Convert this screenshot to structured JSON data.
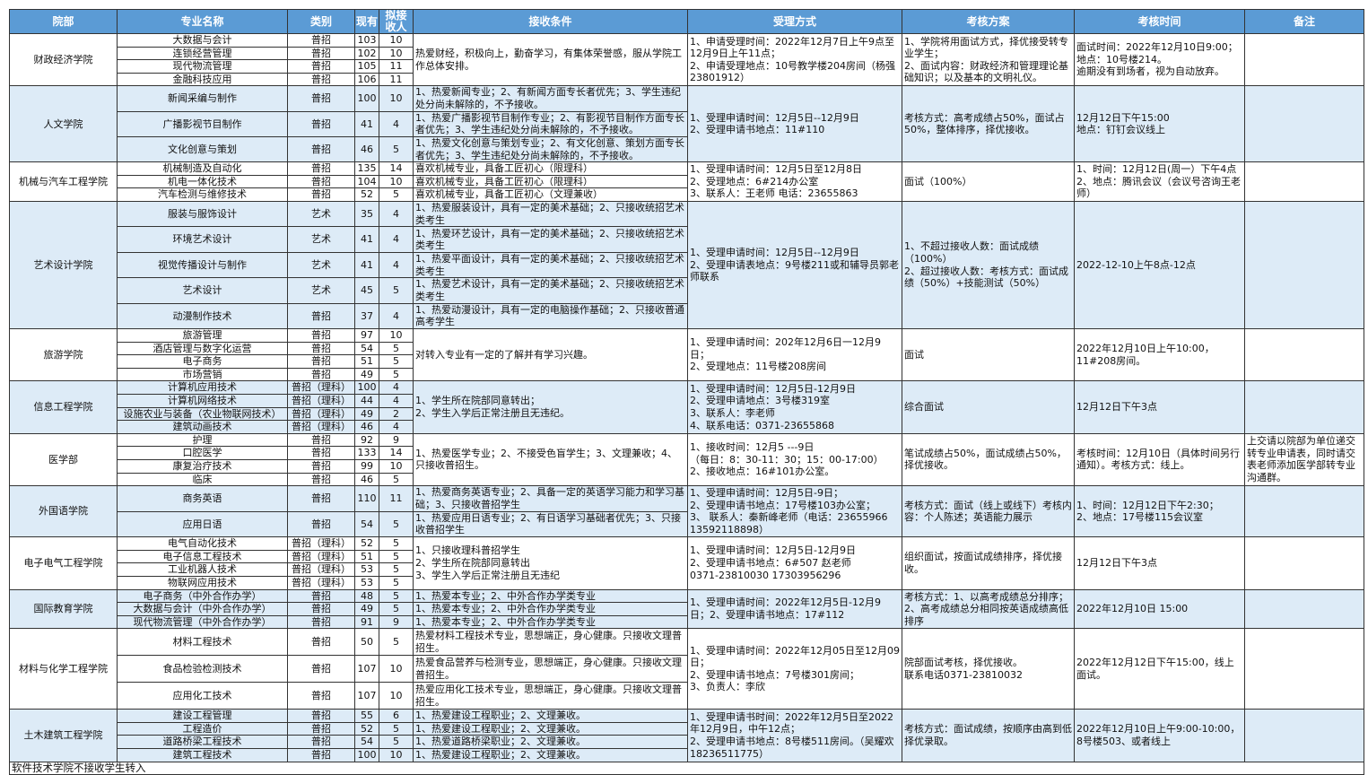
{
  "headers": [
    "院部",
    "专业名称",
    "类别",
    "现有",
    "拟接收人",
    "接收条件",
    "受理方式",
    "考核方案",
    "考核时间",
    "备注"
  ],
  "colors": {
    "header_bg": "#5b9bd5",
    "header_text": "#ffffff",
    "shade_bg": "#ddebf7"
  },
  "colleges": [
    {
      "name": "财政经济学院",
      "shade": false,
      "majors": [
        {
          "name": "大数据与会计",
          "type": "普招",
          "current": "103",
          "quota": "10"
        },
        {
          "name": "连锁经营管理",
          "type": "普招",
          "current": "102",
          "quota": "10"
        },
        {
          "name": "现代物流管理",
          "type": "普招",
          "current": "105",
          "quota": "11"
        },
        {
          "name": "金融科技应用",
          "type": "普招",
          "current": "106",
          "quota": "11"
        }
      ],
      "condition": "热爱财经，积极向上，勤奋学习，有集体荣誉感，服从学院工作总体安排。",
      "process": "1、申请受理时间：2022年12月7日上午9点至12月9日上午11点；\n2、申请受理地点：10号教学楼204房间（杨强23801912）",
      "assessment": "1、学院将用面试方式，择优接受转专业学生；\n2、面试内容：财政经济和管理理论基础知识；以及基本的文明礼仪。",
      "time": "面试时间：2022年12月10日9:00；\n地点：10号楼214。\n逾期没有到场者，视为自动放弃。",
      "note": ""
    },
    {
      "name": "人文学院",
      "shade": true,
      "majors": [
        {
          "name": "新闻采编与制作",
          "type": "普招",
          "current": "100",
          "quota": "10",
          "condition": "1、热爱新闻专业；2、有新闻方面专长者优先；3、学生违纪处分尚未解除的，不予接收。"
        },
        {
          "name": "广播影视节目制作",
          "type": "普招",
          "current": "41",
          "quota": "4",
          "condition": "1、热爱广播影视节目制作专业；2、有影视节目制作方面专长者优先；3、学生违纪处分尚未解除的，不予接收。"
        },
        {
          "name": "文化创意与策划",
          "type": "普招",
          "current": "46",
          "quota": "5",
          "condition": "1、热爱文化创意与策划专业；2、有文化创意、策划方面专长者优先；3、学生违纪处分尚未解除的，不予接收。"
        }
      ],
      "process": "1、受理申请时间：12月5日--12月9日\n2、受理申请书地点：11#110",
      "assessment": "考核方式：高考成绩占50%，面试占50%，整体排序，择优接收。",
      "time": "12月12日下午15:00\n地点：钉钉会议线上",
      "note": ""
    },
    {
      "name": "机械与汽车工程学院",
      "shade": false,
      "majors": [
        {
          "name": "机械制造及自动化",
          "type": "普招",
          "current": "135",
          "quota": "14",
          "condition": "喜欢机械专业，具备工匠初心（限理科）"
        },
        {
          "name": "机电一体化技术",
          "type": "普招",
          "current": "104",
          "quota": "10",
          "condition": "喜欢机械专业，具备工匠初心（限理科）"
        },
        {
          "name": "汽车检测与维修技术",
          "type": "普招",
          "current": "52",
          "quota": "5",
          "condition": "喜欢机械专业，具备工匠初心（文理兼收）"
        }
      ],
      "process": "1、受理申请时间：12月5日至12月8日\n2、受理地点：6#214办公室\n3、联系人：王老师 电话：23655863",
      "assessment": "面试（100%）",
      "time": "1、时间：12月12日(周一）下午4点\n2、地点：腾讯会议（会议号咨询王老师）",
      "note": ""
    },
    {
      "name": "艺术设计学院",
      "shade": true,
      "majors": [
        {
          "name": "服装与服饰设计",
          "type": "艺术",
          "current": "35",
          "quota": "4",
          "condition": "1、热爱服装设计，具有一定的美术基础；2、只接收统招艺术类考生"
        },
        {
          "name": "环境艺术设计",
          "type": "艺术",
          "current": "41",
          "quota": "4",
          "condition": "1、热爱环艺设计，具有一定的美术基础；2、只接收统招艺术类考生"
        },
        {
          "name": "视觉传播设计与制作",
          "type": "艺术",
          "current": "41",
          "quota": "4",
          "condition": "1、热爱平面设计，具有一定的美术基础；2、只接收统招艺术类考生"
        },
        {
          "name": "艺术设计",
          "type": "艺术",
          "current": "45",
          "quota": "5",
          "condition": "1、热爱艺术设计，具有一定的美术基础；2、只接收统招艺术类考生"
        },
        {
          "name": "动漫制作技术",
          "type": "普招",
          "current": "37",
          "quota": "4",
          "condition": "1、热爱动漫设计，具有一定的电脑操作基础；2、只接收普通高考学生"
        }
      ],
      "process": "1、受理申请时间：12月5日--12月9日\n2、受理申请表地点：9号楼211或和辅导员郭老师联系",
      "assessment": "1、不超过接收人数：面试成绩（100%）\n2、超过接收人数：考核方式：面试成绩（50%）+技能测试（50%）",
      "time": "2022-12-10上午8点-12点",
      "note": ""
    },
    {
      "name": "旅游学院",
      "shade": false,
      "majors": [
        {
          "name": "旅游管理",
          "type": "普招",
          "current": "97",
          "quota": "10"
        },
        {
          "name": "酒店管理与数字化运营",
          "type": "普招",
          "current": "54",
          "quota": "5"
        },
        {
          "name": "电子商务",
          "type": "普招",
          "current": "51",
          "quota": "5"
        },
        {
          "name": "市场营销",
          "type": "普招",
          "current": "49",
          "quota": "5"
        }
      ],
      "condition": "对转入专业有一定的了解并有学习兴趣。",
      "process": "1、受理申请时间：202年12月6日一12月9日；\n2、受理地点：11号楼208房间",
      "assessment": "面试",
      "time": "2022年12月10日上午10:00，\n11#208房间。",
      "note": ""
    },
    {
      "name": "信息工程学院",
      "shade": true,
      "majors": [
        {
          "name": "计算机应用技术",
          "type": "普招（理科）",
          "current": "100",
          "quota": "4"
        },
        {
          "name": "计算机网络技术",
          "type": "普招（理科）",
          "current": "44",
          "quota": "4"
        },
        {
          "name": "设施农业与装备（农业物联网技术）",
          "type": "普招（理科）",
          "current": "49",
          "quota": "2"
        },
        {
          "name": "建筑动画技术",
          "type": "普招（理科）",
          "current": "46",
          "quota": "4"
        }
      ],
      "condition": "1、学生所在院部同意转出；\n2、学生入学后正常注册且无违纪。",
      "process": "1、受理申请时间：12月5日-12月9日\n2、受理申请地点：3号楼319室\n3、联系人：李老师\n4、联系电话：0371-23655868",
      "assessment": "综合面试",
      "time": "12月12日下午3点",
      "note": ""
    },
    {
      "name": "医学部",
      "shade": false,
      "majors": [
        {
          "name": "护理",
          "type": "普招",
          "current": "92",
          "quota": "9"
        },
        {
          "name": "口腔医学",
          "type": "普招",
          "current": "133",
          "quota": "14"
        },
        {
          "name": "康复治疗技术",
          "type": "普招",
          "current": "99",
          "quota": "10"
        },
        {
          "name": "临床",
          "type": "普招",
          "current": "46",
          "quota": "5"
        }
      ],
      "condition": "1、热爱医学专业；2、不接受色盲学生；3、文理兼收；4、只接收普招生。",
      "process": "1、接收时间：12月5 ---9日\n（每日：8：30-11：30；15：00-17:00）\n2、接收地点：16#101办公室。",
      "assessment": "笔试成绩占50%，面试成绩占50%，择优接收。",
      "time": "考核时间：12月10日（具体时间另行通知）。考核方式：线上。",
      "note": "上交请以院部为单位递交转专业申请表，同时请交表老师添加医学部转专业沟通群。"
    },
    {
      "name": "外国语学院",
      "shade": true,
      "majors": [
        {
          "name": "商务英语",
          "type": "普招",
          "current": "110",
          "quota": "11",
          "condition": "1、热爱商务英语专业；2、具备一定的英语学习能力和学习基础；3、只接收普招学生"
        },
        {
          "name": "应用日语",
          "type": "普招",
          "current": "54",
          "quota": "5",
          "condition": "1、热爱应用日语专业；2、有日语学习基础者优先；3、只接收普招学生"
        }
      ],
      "process": "1、受理申请时间：12月5日-9日；\n2、受理申请书地点：17号楼103办公室；\n3、 联系人：秦新峰老师（电话：23655966 13592118898）",
      "assessment": "考核方式：面试（线上或线下）考核内容：个人陈述；英语能力展示",
      "time": "1、时间：12月12日下午2:30；\n2、地点：17号楼115会议室",
      "note": ""
    },
    {
      "name": "电子电气工程学院",
      "shade": false,
      "majors": [
        {
          "name": "电气自动化技术",
          "type": "普招（理科）",
          "current": "52",
          "quota": "5"
        },
        {
          "name": "电子信息工程技术",
          "type": "普招（理科）",
          "current": "51",
          "quota": "5"
        },
        {
          "name": "工业机器人技术",
          "type": "普招（理科）",
          "current": "53",
          "quota": "5"
        },
        {
          "name": "物联网应用技术",
          "type": "普招（理科）",
          "current": "53",
          "quota": "5"
        }
      ],
      "condition": "1、只接收理科普招学生\n2、学生所在院部同意转出\n3、学生入学后正常注册且无违纪",
      "process": "1、受理申请时间：12月5日-12月9日\n2、受理申请书地点：6#507 赵老师\n0371-23810030 17303956296",
      "assessment": "组织面试，按面试成绩排序，择优接收。",
      "time": "12月12日下午3点",
      "note": ""
    },
    {
      "name": "国际教育学院",
      "shade": true,
      "majors": [
        {
          "name": "电子商务（中外合作办学）",
          "type": "普招",
          "current": "48",
          "quota": "5",
          "condition": "1、热爱本专业；2、中外合作办学类专业"
        },
        {
          "name": "大数据与会计（中外合作办学）",
          "type": "普招",
          "current": "49",
          "quota": "5",
          "condition": "1、热爱本专业；2、中外合作办学类专业"
        },
        {
          "name": "现代物流管理（中外合作办学）",
          "type": "普招",
          "current": "91",
          "quota": "9",
          "condition": "1、热爱本专业；2、中外合作办学类专业"
        }
      ],
      "process": "1、受理申请时间：2022年12月5日-12月9日；2、受理申请书地点：17#112",
      "assessment": "考核方式：1、以高考成绩总分排序；2、高考成绩总分相同按英语成绩高低排序",
      "time": "2022年12月10日 15:00",
      "note": ""
    },
    {
      "name": "材料与化学工程学院",
      "shade": false,
      "majors": [
        {
          "name": "材料工程技术",
          "type": "普招",
          "current": "50",
          "quota": "5",
          "condition": "热爱材料工程技术专业，思想端正，身心健康。只接收文理普招生。"
        },
        {
          "name": "食品检验检测技术",
          "type": "普招",
          "current": "107",
          "quota": "10",
          "condition": "热爱食品营养与检测专业，思想端正，身心健康。只接收文理普招生。"
        },
        {
          "name": "应用化工技术",
          "type": "普招",
          "current": "107",
          "quota": "10",
          "condition": "热爱应用化工技术专业，思想端正，身心健康。只接收文理普招生。"
        }
      ],
      "process": "1、受理申请时间：2022年12月05日至12月09日；\n2、受理申请书地点：7号楼301房间；\n3、负责人：李欣",
      "assessment": "院部面试考核，择优接收。\n联系电话0371-23810032",
      "time": "2022年12月12日下午15:00，线上面试。",
      "note": ""
    },
    {
      "name": "土木建筑工程学院",
      "shade": true,
      "majors": [
        {
          "name": "建设工程管理",
          "type": "普招",
          "current": "55",
          "quota": "6",
          "condition": "1、热爱建设工程职业；2、文理兼收。"
        },
        {
          "name": "工程造价",
          "type": "普招",
          "current": "52",
          "quota": "5",
          "condition": "1、热爱建设工程职业；2、文理兼收。"
        },
        {
          "name": "道路桥梁工程技术",
          "type": "普招",
          "current": "54",
          "quota": "5",
          "condition": "1、热爱道路桥梁职业；2、文理兼收。"
        },
        {
          "name": "建筑工程技术",
          "type": "普招",
          "current": "100",
          "quota": "10",
          "condition": "1、热爱建设工程职业；2、文理兼收。"
        }
      ],
      "process": "1、受理申请书时间：2022年12月5日至2022年12月9日，中午12点；\n2、受理申请书地点：8号楼511房间。（吴耀欢18236511775）",
      "assessment": "考核方式：面试成绩，按顺序由高到低择优录取。",
      "time": "2022年12月10日上午9:00-10:00，8号楼503、或者线上",
      "note": ""
    }
  ],
  "footer_note": "软件技术学院不接收学生转入"
}
